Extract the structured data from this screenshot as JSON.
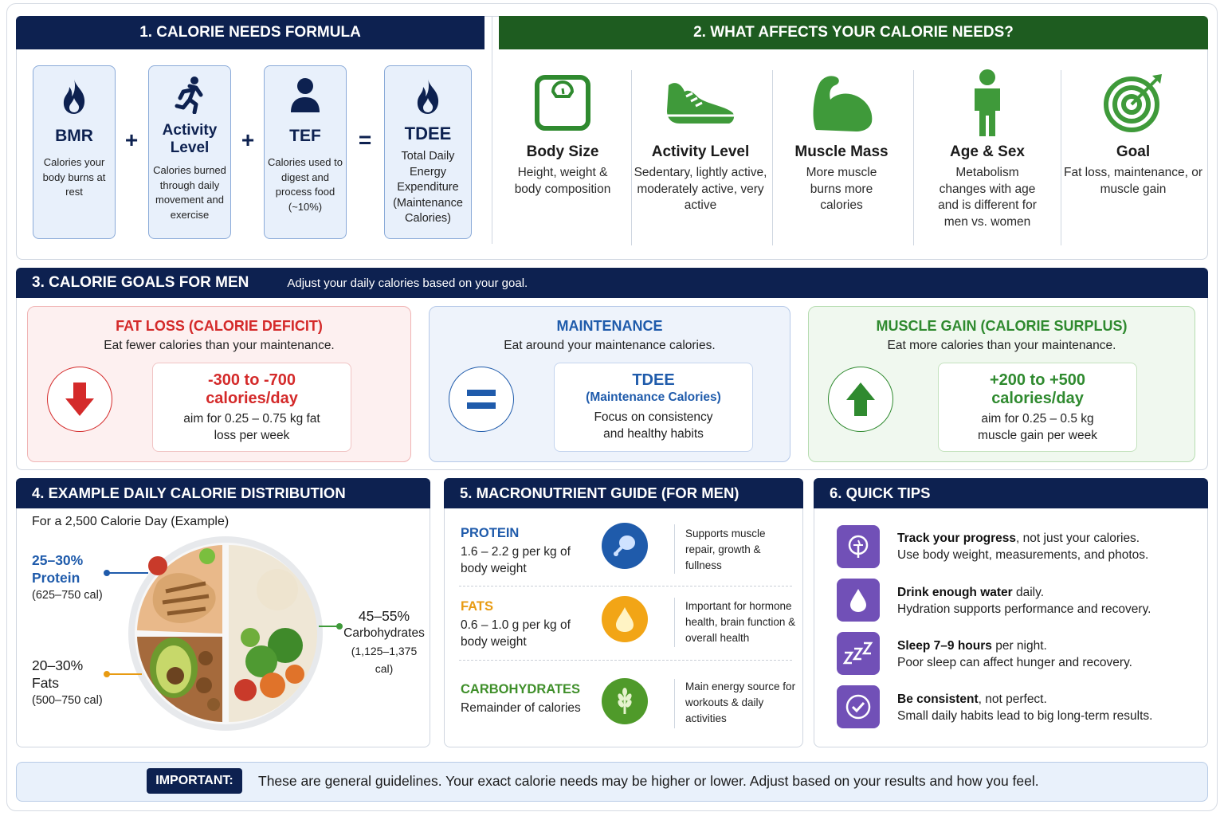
{
  "section1": {
    "title": "1. CALORIE NEEDS FORMULA",
    "boxes": [
      {
        "title": "BMR",
        "desc": "Calories your body burns at rest",
        "icon": "flame-icon"
      },
      {
        "title": "Activity Level",
        "desc": "Calories burned through daily movement and exercise",
        "icon": "running-person-icon"
      },
      {
        "title": "TEF",
        "desc": "Calories used to digest and process food (~10%)",
        "icon": "person-icon"
      },
      {
        "title": "TDEE",
        "desc": "Total Daily Energy Expenditure (Maintenance Calories)",
        "icon": "flame-icon"
      }
    ],
    "ops": [
      "+",
      "+",
      "="
    ]
  },
  "section2": {
    "title": "2. WHAT AFFECTS YOUR CALORIE NEEDS?",
    "factors": [
      {
        "title": "Body Size",
        "desc": "Height, weight & body composition",
        "icon": "scale-icon"
      },
      {
        "title": "Activity Level",
        "desc": "Sedentary, lightly active, moderately active, very active",
        "icon": "sneaker-icon"
      },
      {
        "title": "Muscle Mass",
        "desc": "More muscle burns more calories",
        "icon": "flexed-arm-icon"
      },
      {
        "title": "Age & Sex",
        "desc": "Metabolism changes with age and is different for men vs. women",
        "icon": "person-icon"
      },
      {
        "title": "Goal",
        "desc": "Fat loss, maintenance, or muscle gain",
        "icon": "target-icon"
      }
    ]
  },
  "section3": {
    "title": "3. CALORIE GOALS FOR MEN",
    "subtitle": "Adjust your daily calories based on your goal.",
    "goals": [
      {
        "title": "FAT LOSS (CALORIE DEFICIT)",
        "sub": "Eat fewer calories than your maintenance.",
        "value": "-300 to -700 calories/day",
        "note": "aim for 0.25 – 0.75 kg fat loss per week",
        "icon": "arrow-down-icon",
        "color": "#d42a2a"
      },
      {
        "title": "MAINTENANCE",
        "sub": "Eat around your maintenance calories.",
        "value": "TDEE",
        "value2": "(Maintenance Calories)",
        "note": "Focus on consistency and healthy habits",
        "icon": "equals-icon",
        "color": "#1f5bab"
      },
      {
        "title": "MUSCLE GAIN (CALORIE SURPLUS)",
        "sub": "Eat more calories than your maintenance.",
        "value": "+200 to +500 calories/day",
        "note": "aim for 0.25 – 0.5 kg muscle gain per week",
        "icon": "arrow-up-icon",
        "color": "#2f8a2f"
      }
    ]
  },
  "section4": {
    "title": "4. EXAMPLE DAILY CALORIE DISTRIBUTION",
    "subtitle": "For a 2,500 Calorie Day (Example)",
    "labels": [
      {
        "pct": "25–30%",
        "name": "Protein",
        "cal": "(625–750 cal)"
      },
      {
        "pct": "20–30%",
        "name": "Fats",
        "cal": "(500–750 cal)"
      },
      {
        "pct": "45–55%",
        "name": "Carbohydrates",
        "cal": "(1,125–1,375 cal)"
      }
    ]
  },
  "section5": {
    "title": "5. MACRONUTRIENT GUIDE (FOR MEN)",
    "macros": [
      {
        "name": "PROTEIN",
        "desc": "1.6 – 2.2 g per kg of body weight",
        "note": "Supports muscle repair, growth & fullness",
        "icon": "drumstick-icon",
        "color": "#1f5bab"
      },
      {
        "name": "FATS",
        "desc": "0.6 – 1.0 g per kg of body weight",
        "note": "Important for hormone health, brain function & overall health",
        "icon": "oil-drop-icon",
        "color": "#e89b12"
      },
      {
        "name": "CARBOHYDRATES",
        "desc": "Remainder of calories",
        "note": "Main energy source for workouts & daily activities",
        "icon": "wheat-icon",
        "color": "#3f8f2a"
      }
    ]
  },
  "section6": {
    "title": "6. QUICK TIPS",
    "tips": [
      {
        "bold": "Track your progress",
        "rest": ", not just your calories.",
        "line2": "Use body weight, measurements, and photos.",
        "icon": "scale-icon"
      },
      {
        "bold": "Drink enough water",
        "rest": " daily.",
        "line2": "Hydration supports performance and recovery.",
        "icon": "water-drop-icon"
      },
      {
        "bold": "Sleep 7–9 hours",
        "rest": " per night.",
        "line2": "Poor sleep can affect hunger and recovery.",
        "icon": "sleep-zzz-icon"
      },
      {
        "bold": "Be consistent",
        "rest": ", not perfect.",
        "line2": "Small daily habits lead to big long-term results.",
        "icon": "check-circle-icon"
      }
    ]
  },
  "important": {
    "badge": "IMPORTANT:",
    "text": "These are general guidelines. Your exact calorie needs may be higher or lower. Adjust based on your results and how you feel."
  }
}
